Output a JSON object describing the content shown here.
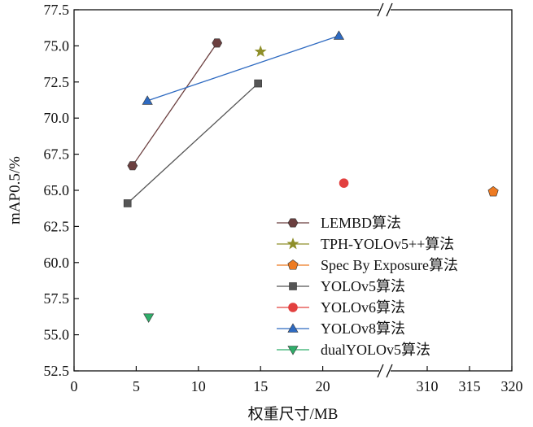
{
  "chart_data": {
    "type": "scatter",
    "title": "",
    "xlabel": "权重尺寸/MB",
    "ylabel": "mAP0.5/%",
    "ylim": [
      52.5,
      77.5
    ],
    "y_ticks": [
      "52.5",
      "55.0",
      "57.5",
      "60.0",
      "62.5",
      "65.0",
      "67.5",
      "70.0",
      "72.5",
      "75.0",
      "77.5"
    ],
    "x_axis_broken": true,
    "x_segments": [
      {
        "range": [
          0,
          25
        ],
        "ticks": [
          "0",
          "5",
          "10",
          "15",
          "20"
        ]
      },
      {
        "range": [
          305,
          320
        ],
        "ticks": [
          "310",
          "315",
          "320"
        ]
      }
    ],
    "legend_position": "bottom-right",
    "series": [
      {
        "name": "LEMBD算法",
        "marker": "hexagon",
        "color": "#6b3f3f",
        "connected": true,
        "points": [
          [
            4.7,
            66.7
          ],
          [
            11.5,
            75.2
          ]
        ]
      },
      {
        "name": "TPH-YOLOv5++算法",
        "marker": "star",
        "color": "#8f8f2a",
        "connected": false,
        "points": [
          [
            15.0,
            74.6
          ]
        ]
      },
      {
        "name": "Spec By Exposure算法",
        "marker": "pentagon",
        "color": "#ee7b22",
        "connected": false,
        "points": [
          [
            317.8,
            64.9
          ]
        ]
      },
      {
        "name": "YOLOv5算法",
        "marker": "square",
        "color": "#555555",
        "connected": true,
        "points": [
          [
            4.3,
            64.1
          ],
          [
            14.8,
            72.4
          ]
        ]
      },
      {
        "name": "YOLOv6算法",
        "marker": "circle",
        "color": "#e2403f",
        "connected": false,
        "points": [
          [
            21.7,
            65.5
          ]
        ]
      },
      {
        "name": "YOLOv8算法",
        "marker": "triangle-up",
        "color": "#2e6ac1",
        "connected": true,
        "points": [
          [
            5.9,
            71.2
          ],
          [
            21.3,
            75.7
          ]
        ]
      },
      {
        "name": "dualYOLOv5算法",
        "marker": "triangle-down",
        "color": "#2fae6a",
        "connected": false,
        "points": [
          [
            6.0,
            56.2
          ]
        ]
      }
    ]
  }
}
